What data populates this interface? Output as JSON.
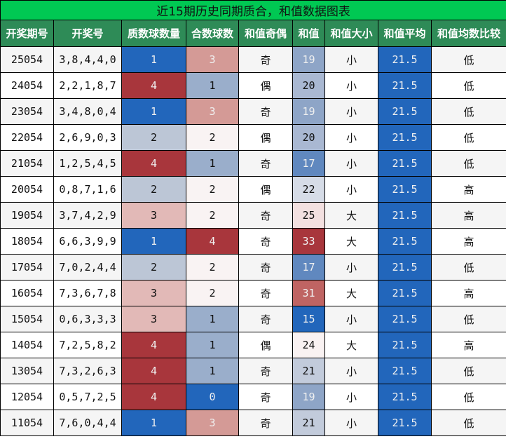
{
  "title": "近15期历史同期质合，和值数据图表",
  "headers": [
    "开奖期号",
    "开奖号",
    "质数球数量",
    "合数球数",
    "和值奇偶",
    "和值",
    "和值大小",
    "和值平均",
    "和值均数比较"
  ],
  "colors": {
    "title_bg": "#00c853",
    "header_bg": "#2e8b57",
    "avg_bg": "#2266bb"
  },
  "rows": [
    {
      "issue": "25054",
      "nums": "3,8,4,4,0",
      "prime": "1",
      "composite": "3",
      "parity": "奇",
      "sum": "19",
      "size": "小",
      "avg": "21.5",
      "cmp": "低"
    },
    {
      "issue": "24054",
      "nums": "2,2,1,8,7",
      "prime": "4",
      "composite": "1",
      "parity": "偶",
      "sum": "20",
      "size": "小",
      "avg": "21.5",
      "cmp": "低"
    },
    {
      "issue": "23054",
      "nums": "3,4,8,0,4",
      "prime": "1",
      "composite": "3",
      "parity": "奇",
      "sum": "19",
      "size": "小",
      "avg": "21.5",
      "cmp": "低"
    },
    {
      "issue": "22054",
      "nums": "2,6,9,0,3",
      "prime": "2",
      "composite": "2",
      "parity": "偶",
      "sum": "20",
      "size": "小",
      "avg": "21.5",
      "cmp": "低"
    },
    {
      "issue": "21054",
      "nums": "1,2,5,4,5",
      "prime": "4",
      "composite": "1",
      "parity": "奇",
      "sum": "17",
      "size": "小",
      "avg": "21.5",
      "cmp": "低"
    },
    {
      "issue": "20054",
      "nums": "0,8,7,1,6",
      "prime": "2",
      "composite": "2",
      "parity": "偶",
      "sum": "22",
      "size": "小",
      "avg": "21.5",
      "cmp": "高"
    },
    {
      "issue": "19054",
      "nums": "3,7,4,2,9",
      "prime": "3",
      "composite": "2",
      "parity": "奇",
      "sum": "25",
      "size": "大",
      "avg": "21.5",
      "cmp": "高"
    },
    {
      "issue": "18054",
      "nums": "6,6,3,9,9",
      "prime": "1",
      "composite": "4",
      "parity": "奇",
      "sum": "33",
      "size": "大",
      "avg": "21.5",
      "cmp": "高"
    },
    {
      "issue": "17054",
      "nums": "7,0,2,4,4",
      "prime": "2",
      "composite": "2",
      "parity": "奇",
      "sum": "17",
      "size": "小",
      "avg": "21.5",
      "cmp": "低"
    },
    {
      "issue": "16054",
      "nums": "7,3,6,7,8",
      "prime": "3",
      "composite": "2",
      "parity": "奇",
      "sum": "31",
      "size": "大",
      "avg": "21.5",
      "cmp": "高"
    },
    {
      "issue": "15054",
      "nums": "0,6,3,3,3",
      "prime": "3",
      "composite": "1",
      "parity": "奇",
      "sum": "15",
      "size": "小",
      "avg": "21.5",
      "cmp": "低"
    },
    {
      "issue": "14054",
      "nums": "7,2,5,8,2",
      "prime": "4",
      "composite": "1",
      "parity": "偶",
      "sum": "24",
      "size": "大",
      "avg": "21.5",
      "cmp": "高"
    },
    {
      "issue": "13054",
      "nums": "7,3,2,6,3",
      "prime": "4",
      "composite": "1",
      "parity": "奇",
      "sum": "21",
      "size": "小",
      "avg": "21.5",
      "cmp": "低"
    },
    {
      "issue": "12054",
      "nums": "0,5,7,2,5",
      "prime": "4",
      "composite": "0",
      "parity": "奇",
      "sum": "19",
      "size": "小",
      "avg": "21.5",
      "cmp": "低"
    },
    {
      "issue": "11054",
      "nums": "7,6,0,4,4",
      "prime": "1",
      "composite": "3",
      "parity": "奇",
      "sum": "21",
      "size": "小",
      "avg": "21.5",
      "cmp": "低"
    }
  ]
}
